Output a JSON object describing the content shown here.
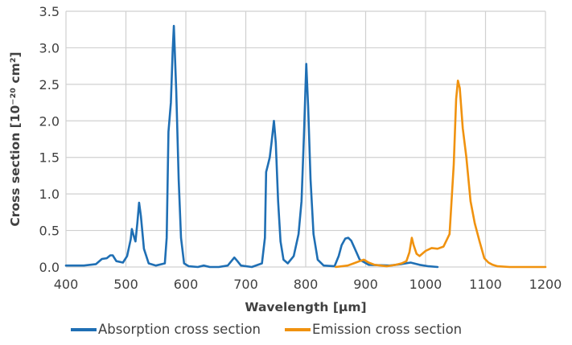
{
  "chart_data": {
    "type": "line",
    "xlabel": "Wavelength [µm]",
    "ylabel": "Cross section [10⁻²⁰ cm²]",
    "xlim": [
      400,
      1200
    ],
    "ylim": [
      0,
      3.5
    ],
    "xticks": [
      "400",
      "500",
      "600",
      "700",
      "800",
      "900",
      "1000",
      "1100",
      "1200"
    ],
    "yticks": [
      "0.0",
      "0.5",
      "1.0",
      "1.5",
      "2.0",
      "2.5",
      "3.0",
      "3.5"
    ],
    "grid": true,
    "legend_position": "bottom",
    "series": [
      {
        "name": "Absorption cross section",
        "color": "#1f6fb4",
        "points": [
          [
            400,
            0.02
          ],
          [
            430,
            0.02
          ],
          [
            450,
            0.04
          ],
          [
            460,
            0.11
          ],
          [
            468,
            0.12
          ],
          [
            474,
            0.16
          ],
          [
            478,
            0.16
          ],
          [
            484,
            0.08
          ],
          [
            495,
            0.06
          ],
          [
            502,
            0.15
          ],
          [
            508,
            0.38
          ],
          [
            510,
            0.52
          ],
          [
            514,
            0.4
          ],
          [
            516,
            0.35
          ],
          [
            519,
            0.6
          ],
          [
            522,
            0.88
          ],
          [
            525,
            0.7
          ],
          [
            530,
            0.25
          ],
          [
            538,
            0.05
          ],
          [
            550,
            0.02
          ],
          [
            565,
            0.05
          ],
          [
            568,
            0.4
          ],
          [
            571,
            1.85
          ],
          [
            575,
            2.25
          ],
          [
            578,
            2.95
          ],
          [
            580,
            3.3
          ],
          [
            584,
            2.4
          ],
          [
            588,
            1.2
          ],
          [
            592,
            0.4
          ],
          [
            597,
            0.05
          ],
          [
            605,
            0.01
          ],
          [
            620,
            0.0
          ],
          [
            630,
            0.02
          ],
          [
            640,
            0.0
          ],
          [
            655,
            0.0
          ],
          [
            670,
            0.02
          ],
          [
            676,
            0.08
          ],
          [
            681,
            0.13
          ],
          [
            686,
            0.08
          ],
          [
            692,
            0.02
          ],
          [
            710,
            0.0
          ],
          [
            727,
            0.05
          ],
          [
            732,
            0.4
          ],
          [
            734,
            1.3
          ],
          [
            737,
            1.4
          ],
          [
            740,
            1.5
          ],
          [
            743,
            1.7
          ],
          [
            747,
            2.0
          ],
          [
            750,
            1.7
          ],
          [
            754,
            0.9
          ],
          [
            758,
            0.35
          ],
          [
            763,
            0.1
          ],
          [
            770,
            0.05
          ],
          [
            780,
            0.15
          ],
          [
            788,
            0.45
          ],
          [
            793,
            0.9
          ],
          [
            797,
            1.8
          ],
          [
            801,
            2.78
          ],
          [
            804,
            2.2
          ],
          [
            808,
            1.2
          ],
          [
            813,
            0.45
          ],
          [
            820,
            0.1
          ],
          [
            830,
            0.02
          ],
          [
            848,
            0.01
          ],
          [
            855,
            0.15
          ],
          [
            860,
            0.3
          ],
          [
            866,
            0.39
          ],
          [
            871,
            0.4
          ],
          [
            876,
            0.36
          ],
          [
            882,
            0.25
          ],
          [
            890,
            0.1
          ],
          [
            905,
            0.03
          ],
          [
            940,
            0.02
          ],
          [
            960,
            0.04
          ],
          [
            975,
            0.06
          ],
          [
            990,
            0.03
          ],
          [
            1005,
            0.01
          ],
          [
            1020,
            0.0
          ]
        ]
      },
      {
        "name": "Emission cross section",
        "color": "#f0920f",
        "points": [
          [
            850,
            0.0
          ],
          [
            870,
            0.02
          ],
          [
            880,
            0.05
          ],
          [
            890,
            0.08
          ],
          [
            897,
            0.1
          ],
          [
            905,
            0.06
          ],
          [
            915,
            0.03
          ],
          [
            935,
            0.01
          ],
          [
            950,
            0.03
          ],
          [
            960,
            0.05
          ],
          [
            968,
            0.08
          ],
          [
            973,
            0.2
          ],
          [
            977,
            0.4
          ],
          [
            980,
            0.3
          ],
          [
            985,
            0.18
          ],
          [
            990,
            0.15
          ],
          [
            1000,
            0.22
          ],
          [
            1010,
            0.26
          ],
          [
            1020,
            0.25
          ],
          [
            1030,
            0.28
          ],
          [
            1040,
            0.45
          ],
          [
            1047,
            1.4
          ],
          [
            1051,
            2.3
          ],
          [
            1054,
            2.55
          ],
          [
            1057,
            2.45
          ],
          [
            1062,
            1.9
          ],
          [
            1068,
            1.5
          ],
          [
            1075,
            0.9
          ],
          [
            1082,
            0.6
          ],
          [
            1090,
            0.35
          ],
          [
            1098,
            0.12
          ],
          [
            1105,
            0.06
          ],
          [
            1112,
            0.03
          ],
          [
            1120,
            0.01
          ],
          [
            1140,
            0.0
          ],
          [
            1160,
            0.0
          ],
          [
            1180,
            0.0
          ],
          [
            1200,
            0.0
          ]
        ]
      }
    ]
  }
}
